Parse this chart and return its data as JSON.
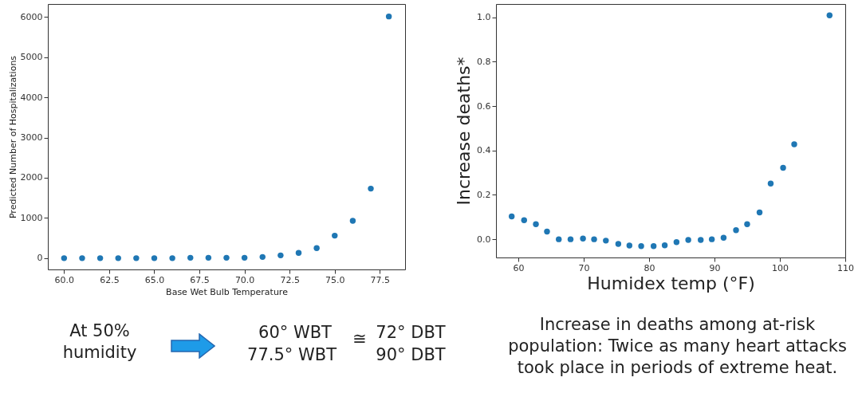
{
  "chart_data": [
    {
      "type": "scatter",
      "xlabel": "Base Wet Bulb Temperature",
      "ylabel": "Predicted Number of Hospitalizations",
      "x": [
        60,
        61,
        62,
        63,
        64,
        65,
        66,
        67,
        68,
        69,
        70,
        71,
        72,
        73,
        74,
        75,
        76,
        77,
        78
      ],
      "values": [
        0,
        0,
        0,
        0,
        0,
        0,
        0,
        10,
        10,
        10,
        10,
        30,
        70,
        130,
        250,
        560,
        930,
        1730,
        6010
      ],
      "color": "#1f77b4",
      "marker": "circle",
      "xlim": [
        59.1,
        78.9
      ],
      "xticks": [
        {
          "value": 60,
          "label": "60.0"
        },
        62.5,
        {
          "value": 65,
          "label": "65.0"
        },
        67.5,
        {
          "value": 70,
          "label": "70.0"
        },
        72.5,
        {
          "value": 75,
          "label": "75.0"
        },
        77.5
      ],
      "ylim": [
        -280,
        6320
      ],
      "yticks": [
        0,
        1000,
        2000,
        3000,
        4000,
        5000,
        6000
      ],
      "annotations": [
        "At 50% humidity",
        "60° WBT",
        "77.5° WBT",
        "≅",
        "72° DBT",
        "90° DBT"
      ]
    },
    {
      "type": "scatter",
      "xlabel": "Humidex temp (°F)",
      "ylabel": "Increase deaths*",
      "x": [
        59.0,
        60.9,
        62.7,
        64.4,
        66.2,
        68.0,
        69.9,
        71.6,
        73.4,
        75.3,
        77.0,
        78.8,
        80.7,
        82.4,
        84.2,
        86.0,
        87.9,
        89.6,
        91.4,
        93.3,
        95.0,
        96.9,
        98.6,
        100.5,
        102.2,
        107.6
      ],
      "values": [
        0.103,
        0.086,
        0.068,
        0.035,
        0.0,
        0.0,
        0.003,
        0.0,
        -0.006,
        -0.021,
        -0.028,
        -0.031,
        -0.031,
        -0.027,
        -0.013,
        -0.003,
        -0.003,
        0.0,
        0.007,
        0.041,
        0.068,
        0.121,
        0.251,
        0.322,
        0.428,
        1.009
      ],
      "color": "#1f77b4",
      "marker": "circle",
      "xlim": [
        56.6,
        110
      ],
      "xticks": [
        60,
        70,
        80,
        90,
        100,
        110
      ],
      "ylim": [
        -0.082,
        1.06
      ],
      "yticks": [
        {
          "value": 0,
          "label": "0.0"
        },
        0.2,
        0.4,
        0.6,
        0.8,
        {
          "value": 1,
          "label": "1.0"
        }
      ],
      "annotations": [
        "Increase in deaths among at-risk population: Twice as many heart attacks took place in periods of extreme heat."
      ]
    }
  ]
}
